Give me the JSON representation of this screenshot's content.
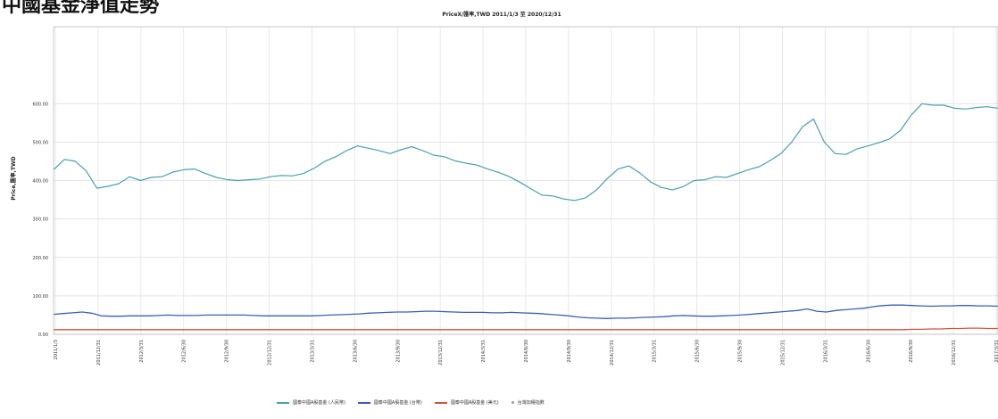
{
  "page_heading": "中國基金淨值走勢",
  "chart_data": {
    "type": "line",
    "title": "PriceX/匯率,TWD 2011/1/3 至 2020/12/31",
    "xlabel": "",
    "ylabel": "Price,匯率,TWD",
    "ylim": [
      0,
      800
    ],
    "y_ticks": [
      0,
      100,
      200,
      300,
      400,
      500,
      600
    ],
    "y_tick_labels": [
      "0.00",
      "100.00",
      "200.00",
      "300.00",
      "400.00",
      "500.00",
      "600.00"
    ],
    "x_tick_labels": [
      "2011/1/3",
      "2011/12/31",
      "2012/3/31",
      "2012/6/30",
      "2012/9/30",
      "2012/12/31",
      "2013/3/31",
      "2013/6/30",
      "2013/9/30",
      "2013/12/31",
      "2014/3/31",
      "2014/6/30",
      "2014/9/30",
      "2014/12/31",
      "2015/3/31",
      "2015/6/30",
      "2015/9/30",
      "2015/12/31",
      "2016/3/31",
      "2016/6/30",
      "2016/9/30",
      "2016/12/31",
      "2017/3/31"
    ],
    "grid": true,
    "legend_position": "bottom",
    "series": [
      {
        "name": "國泰中國A股基金 (人民幣)",
        "color": "#4a9fae",
        "values": [
          428,
          455,
          450,
          425,
          380,
          385,
          392,
          410,
          400,
          408,
          410,
          422,
          428,
          430,
          418,
          408,
          402,
          400,
          402,
          404,
          410,
          413,
          412,
          418,
          432,
          450,
          462,
          478,
          490,
          484,
          478,
          470,
          480,
          488,
          478,
          466,
          462,
          451,
          445,
          440,
          430,
          421,
          410,
          395,
          378,
          362,
          360,
          352,
          348,
          355,
          375,
          405,
          430,
          438,
          420,
          396,
          382,
          376,
          384,
          400,
          402,
          410,
          408,
          418,
          428,
          436,
          452,
          470,
          500,
          540,
          560,
          500,
          470,
          468,
          482,
          490,
          498,
          508,
          530,
          570,
          600,
          596,
          596,
          588,
          586,
          590,
          592,
          588
        ]
      },
      {
        "name": "國泰中國A股基金 (台幣)",
        "color": "#3a5fb0",
        "values": [
          52,
          54,
          56,
          58,
          55,
          48,
          47,
          47,
          48,
          48,
          48,
          49,
          50,
          49,
          49,
          49,
          50,
          50,
          50,
          50,
          50,
          49,
          48,
          48,
          48,
          48,
          48,
          48,
          49,
          50,
          51,
          52,
          53,
          55,
          56,
          57,
          58,
          58,
          59,
          60,
          60,
          59,
          58,
          57,
          57,
          57,
          56,
          56,
          57,
          56,
          55,
          54,
          52,
          50,
          48,
          45,
          43,
          42,
          41,
          42,
          42,
          43,
          44,
          45,
          46,
          48,
          49,
          48,
          47,
          47,
          48,
          49,
          50,
          52,
          54,
          56,
          58,
          60,
          62,
          66,
          60,
          58,
          62,
          64,
          66,
          68,
          72,
          75,
          76,
          76,
          75,
          74,
          73,
          74,
          74,
          75,
          75,
          74,
          74,
          73
        ]
      },
      {
        "name": "國泰中國A股基金 (美元)",
        "color": "#d2553a",
        "values": [
          12,
          12,
          12,
          12,
          12,
          12,
          12,
          12,
          12,
          12,
          12,
          12,
          12,
          12,
          12,
          12,
          12,
          12,
          12,
          12,
          12,
          12,
          12,
          12,
          12,
          12,
          12,
          12,
          12,
          12,
          12,
          12,
          12,
          12,
          12,
          12,
          12,
          12,
          12,
          12,
          12,
          12,
          12,
          12,
          12,
          12,
          12,
          12,
          12,
          12,
          12,
          12,
          12,
          12,
          12,
          12,
          12,
          12,
          12,
          12,
          12,
          12,
          12,
          12,
          12,
          12,
          12,
          12,
          12,
          12,
          12,
          12,
          12,
          12,
          12,
          12,
          12,
          12,
          12,
          12,
          12,
          12,
          12,
          12,
          12,
          12,
          12,
          12,
          12,
          12,
          13,
          13,
          14,
          14,
          15,
          15,
          16,
          16,
          15,
          15
        ]
      },
      {
        "name": "台灣加權指數",
        "color": "#999999",
        "values": []
      }
    ]
  }
}
